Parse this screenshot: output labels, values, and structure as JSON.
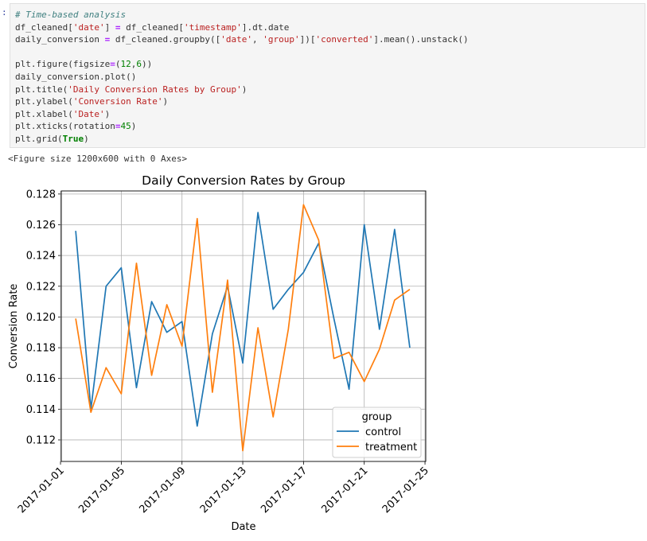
{
  "cell": {
    "prompt": ":",
    "lines": [
      [
        {
          "t": "# Time-based analysis",
          "c": "comment"
        }
      ],
      [
        {
          "t": "df_cleaned[",
          "c": "plain"
        },
        {
          "t": "'date'",
          "c": "str"
        },
        {
          "t": "] ",
          "c": "plain"
        },
        {
          "t": "=",
          "c": "op"
        },
        {
          "t": " df_cleaned[",
          "c": "plain"
        },
        {
          "t": "'timestamp'",
          "c": "str"
        },
        {
          "t": "].dt.date",
          "c": "plain"
        }
      ],
      [
        {
          "t": "daily_conversion ",
          "c": "plain"
        },
        {
          "t": "=",
          "c": "op"
        },
        {
          "t": " df_cleaned.groupby([",
          "c": "plain"
        },
        {
          "t": "'date'",
          "c": "str"
        },
        {
          "t": ", ",
          "c": "plain"
        },
        {
          "t": "'group'",
          "c": "str"
        },
        {
          "t": "])[",
          "c": "plain"
        },
        {
          "t": "'converted'",
          "c": "str"
        },
        {
          "t": "].mean().unstack()",
          "c": "plain"
        }
      ],
      [],
      [
        {
          "t": "plt.figure(figsize",
          "c": "plain"
        },
        {
          "t": "=",
          "c": "op"
        },
        {
          "t": "(",
          "c": "plain"
        },
        {
          "t": "12",
          "c": "num"
        },
        {
          "t": ",",
          "c": "plain"
        },
        {
          "t": "6",
          "c": "num"
        },
        {
          "t": "))",
          "c": "plain"
        }
      ],
      [
        {
          "t": "daily_conversion.plot()",
          "c": "plain"
        }
      ],
      [
        {
          "t": "plt.title(",
          "c": "plain"
        },
        {
          "t": "'Daily Conversion Rates by Group'",
          "c": "str"
        },
        {
          "t": ")",
          "c": "plain"
        }
      ],
      [
        {
          "t": "plt.ylabel(",
          "c": "plain"
        },
        {
          "t": "'Conversion Rate'",
          "c": "str"
        },
        {
          "t": ")",
          "c": "plain"
        }
      ],
      [
        {
          "t": "plt.xlabel(",
          "c": "plain"
        },
        {
          "t": "'Date'",
          "c": "str"
        },
        {
          "t": ")",
          "c": "plain"
        }
      ],
      [
        {
          "t": "plt.xticks(rotation",
          "c": "plain"
        },
        {
          "t": "=",
          "c": "op"
        },
        {
          "t": "45",
          "c": "num"
        },
        {
          "t": ")",
          "c": "plain"
        }
      ],
      [
        {
          "t": "plt.grid(",
          "c": "plain"
        },
        {
          "t": "True",
          "c": "kw"
        },
        {
          "t": ")",
          "c": "plain"
        }
      ]
    ]
  },
  "output": {
    "text": "<Figure size 1200x600 with 0 Axes>"
  },
  "colors": {
    "control": "#1f77b4",
    "treatment": "#ff7f0e",
    "grid": "#b0b0b0"
  },
  "chart_data": {
    "type": "line",
    "title": "Daily Conversion Rates by Group",
    "xlabel": "Date",
    "ylabel": "Conversion Rate",
    "x": [
      "2017-01-02",
      "2017-01-03",
      "2017-01-04",
      "2017-01-05",
      "2017-01-06",
      "2017-01-07",
      "2017-01-08",
      "2017-01-09",
      "2017-01-10",
      "2017-01-11",
      "2017-01-12",
      "2017-01-13",
      "2017-01-14",
      "2017-01-15",
      "2017-01-16",
      "2017-01-17",
      "2017-01-18",
      "2017-01-19",
      "2017-01-20",
      "2017-01-21",
      "2017-01-22",
      "2017-01-23",
      "2017-01-24"
    ],
    "series": [
      {
        "name": "control",
        "values": [
          0.1256,
          0.114,
          0.122,
          0.1232,
          0.1154,
          0.121,
          0.119,
          0.1197,
          0.1129,
          0.1189,
          0.122,
          0.117,
          0.1268,
          0.1205,
          0.1218,
          0.1229,
          0.1248,
          0.1199,
          0.1153,
          0.126,
          0.1192,
          0.1257,
          0.118
        ]
      },
      {
        "name": "treatment",
        "values": [
          0.1199,
          0.1138,
          0.1167,
          0.115,
          0.1235,
          0.1162,
          0.1208,
          0.1181,
          0.1264,
          0.1151,
          0.1224,
          0.1113,
          0.1193,
          0.1135,
          0.1192,
          0.1273,
          0.125,
          0.1173,
          0.1177,
          0.1158,
          0.1179,
          0.1211,
          0.1218
        ]
      }
    ],
    "ylim": [
      0.1106,
      0.1282
    ],
    "yticks": [
      "0.112",
      "0.114",
      "0.116",
      "0.118",
      "0.120",
      "0.122",
      "0.124",
      "0.126",
      "0.128"
    ],
    "xticks": [
      "2017-01-01",
      "2017-01-05",
      "2017-01-09",
      "2017-01-13",
      "2017-01-17",
      "2017-01-21",
      "2017-01-25"
    ],
    "grid": true,
    "legend": {
      "title": "group",
      "placement": "lower-right"
    }
  }
}
